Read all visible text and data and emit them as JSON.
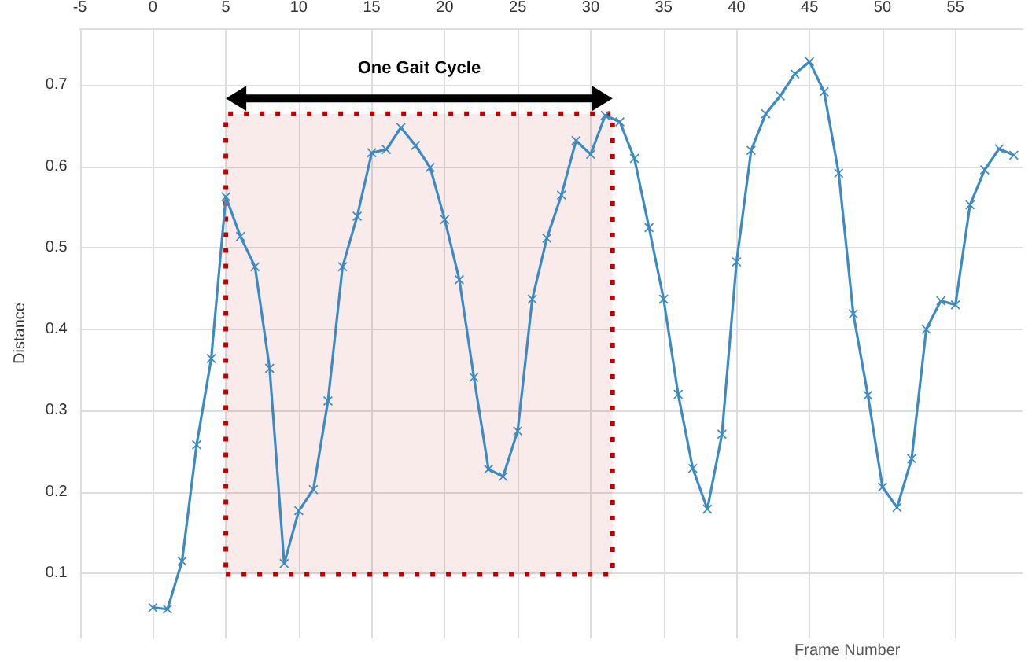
{
  "chart_data": {
    "type": "line",
    "xlabel": "Frame Number",
    "ylabel": "Distance",
    "x": [
      0,
      1,
      2,
      3,
      4,
      5,
      6,
      7,
      8,
      9,
      10,
      11,
      12,
      13,
      14,
      15,
      16,
      17,
      18,
      19,
      20,
      21,
      22,
      23,
      24,
      25,
      26,
      27,
      28,
      29,
      30,
      31,
      32,
      33,
      34,
      35,
      36,
      37,
      38,
      39,
      40,
      41,
      42,
      43,
      44,
      45,
      46,
      47,
      48,
      49,
      50,
      51,
      52,
      53,
      54,
      55,
      56,
      57,
      58,
      59
    ],
    "series": [
      {
        "color": "#3b8bc2",
        "values": [
          0.058,
          0.056,
          0.115,
          0.258,
          0.364,
          0.563,
          0.514,
          0.477,
          0.352,
          0.112,
          0.177,
          0.203,
          0.312,
          0.477,
          0.539,
          0.617,
          0.621,
          0.648,
          0.626,
          0.599,
          0.535,
          0.461,
          0.341,
          0.228,
          0.219,
          0.275,
          0.437,
          0.512,
          0.565,
          0.632,
          0.615,
          0.663,
          0.655,
          0.61,
          0.525,
          0.437,
          0.32,
          0.229,
          0.179,
          0.271,
          0.483,
          0.62,
          0.665,
          0.687,
          0.714,
          0.729,
          0.692,
          0.592,
          0.419,
          0.319,
          0.206,
          0.181,
          0.241,
          0.4,
          0.435,
          0.43,
          0.553,
          0.596,
          0.622,
          0.614
        ]
      }
    ],
    "xlim": [
      -5,
      59.6
    ],
    "xticks": [
      -5,
      0,
      5,
      10,
      15,
      20,
      25,
      30,
      35,
      40,
      45,
      50,
      55
    ],
    "ylim": [
      0.02,
      0.77
    ],
    "yticks": [
      0.1,
      0.2,
      0.3,
      0.4,
      0.5,
      0.6,
      0.7
    ],
    "bands": [
      {
        "axis": "x",
        "from": 5,
        "to": 31.5,
        "label": "One Gait Cycle",
        "color": "#c00000"
      }
    ],
    "grid": true,
    "marker": "cross",
    "line_style": "solid"
  }
}
